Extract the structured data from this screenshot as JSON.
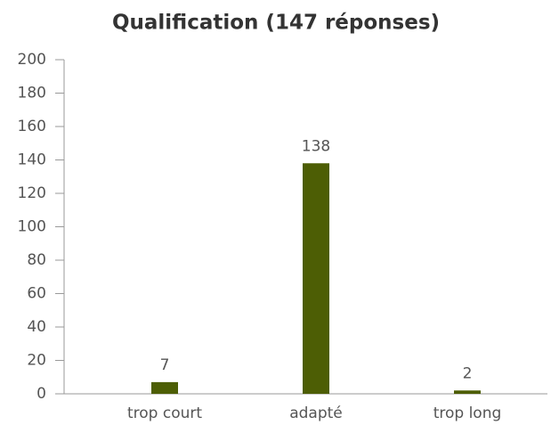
{
  "chart_data": {
    "type": "bar",
    "title": "Qualification (147 réponses)",
    "categories": [
      "trop court",
      "adapté",
      "trop long"
    ],
    "values": [
      7,
      138,
      2
    ],
    "color": "#4d5e05",
    "ylim": [
      0,
      200
    ],
    "yticks": [
      0,
      20,
      40,
      60,
      80,
      100,
      120,
      140,
      160,
      180,
      200
    ],
    "grid": false
  }
}
